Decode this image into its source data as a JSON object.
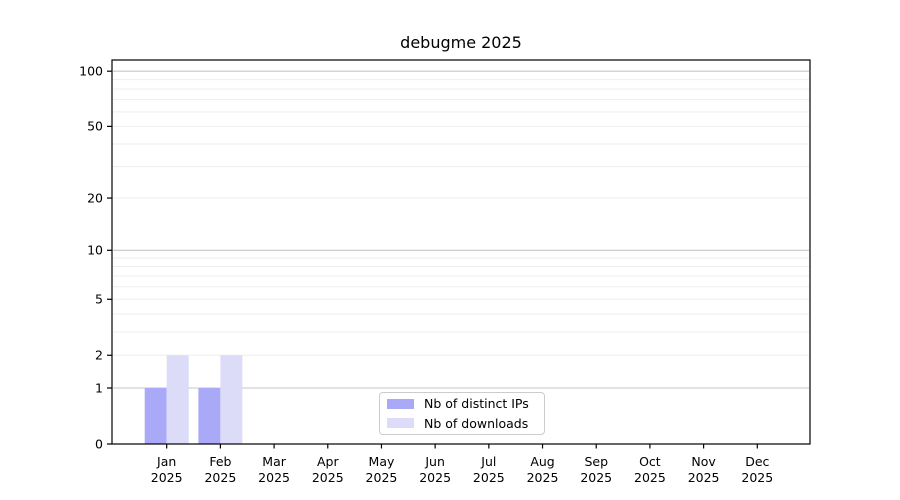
{
  "chart_data": {
    "type": "bar",
    "title": "debugme 2025",
    "categories": [
      "Jan",
      "Feb",
      "Mar",
      "Apr",
      "May",
      "Jun",
      "Jul",
      "Aug",
      "Sep",
      "Oct",
      "Nov",
      "Dec"
    ],
    "year_label": "2025",
    "series": [
      {
        "name": "Nb of distinct IPs",
        "color": "#a9a9f7",
        "values": [
          1,
          1,
          0,
          0,
          0,
          0,
          0,
          0,
          0,
          0,
          0,
          0
        ]
      },
      {
        "name": "Nb of downloads",
        "color": "#dcdcf8",
        "values": [
          2,
          2,
          0,
          0,
          0,
          0,
          0,
          0,
          0,
          0,
          0,
          0
        ]
      }
    ],
    "yscale": "log1p",
    "ylim": [
      0,
      115
    ],
    "yticks": [
      0,
      1,
      2,
      5,
      10,
      20,
      50,
      100
    ],
    "major_gridlines": [
      1,
      10,
      100
    ],
    "minor_gridlines": [
      2,
      3,
      4,
      5,
      6,
      7,
      8,
      9,
      20,
      30,
      40,
      50,
      60,
      70,
      80,
      90
    ],
    "grid": true,
    "legend_position": "lower center",
    "colors": {
      "frame": "#000000",
      "major_grid": "#c6c6c6",
      "minor_grid": "#ededed",
      "tick_text": "#000000",
      "background": "#ffffff",
      "legend_border": "#cccccc"
    }
  }
}
